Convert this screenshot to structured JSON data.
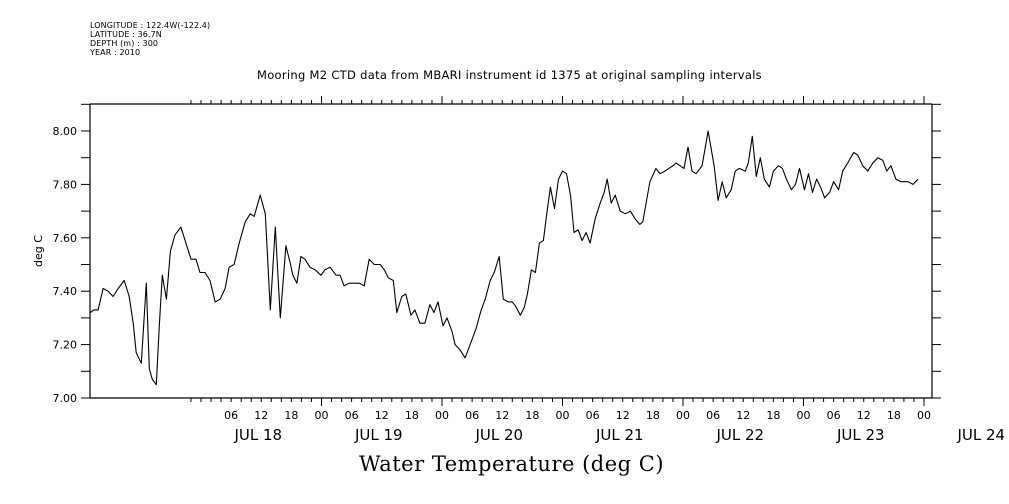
{
  "header": {
    "meta_lines": [
      "LONGITUDE : 122.4W(-122.4)",
      "LATITUDE : 36.7N",
      "DEPTH (m) : 300",
      "YEAR : 2010"
    ]
  },
  "chart_data": {
    "type": "line",
    "title": "Mooring M2 CTD data from MBARI instrument id 1375 at original sampling intervals",
    "xlabel": "Water Temperature (deg C)",
    "ylabel": "deg C",
    "ylim": [
      7.0,
      8.1
    ],
    "yticks": [
      7.0,
      7.2,
      7.4,
      7.6,
      7.8,
      8.0
    ],
    "ytick_labels": [
      "7.00",
      "7.20",
      "7.40",
      "7.60",
      "7.80",
      "8.00"
    ],
    "y_minor_step": 0.1,
    "x_units": "hours since JUL 18 00:00 (2010)",
    "xlim": [
      22.0,
      169.5
    ],
    "x_minor_step_hours": 2,
    "x_hour_ticks": [
      {
        "hour": 30,
        "label": "06"
      },
      {
        "hour": 36,
        "label": "12"
      },
      {
        "hour": 42,
        "label": "18"
      },
      {
        "hour": 48,
        "label": "00"
      },
      {
        "hour": 54,
        "label": "06"
      },
      {
        "hour": 60,
        "label": "12"
      },
      {
        "hour": 66,
        "label": "18"
      },
      {
        "hour": 72,
        "label": "00"
      },
      {
        "hour": 78,
        "label": "06"
      },
      {
        "hour": 84,
        "label": "12"
      },
      {
        "hour": 90,
        "label": "18"
      },
      {
        "hour": 96,
        "label": "00"
      },
      {
        "hour": 102,
        "label": "06"
      },
      {
        "hour": 108,
        "label": "12"
      },
      {
        "hour": 114,
        "label": "18"
      },
      {
        "hour": 120,
        "label": "00"
      },
      {
        "hour": 126,
        "label": "06"
      },
      {
        "hour": 132,
        "label": "12"
      },
      {
        "hour": 138,
        "label": "18"
      },
      {
        "hour": 144,
        "label": "00"
      },
      {
        "hour": 150,
        "label": "06"
      },
      {
        "hour": 156,
        "label": "12"
      },
      {
        "hour": 162,
        "label": "18"
      },
      {
        "hour": 168,
        "label": "00"
      }
    ],
    "x_day_labels": [
      {
        "hour": 36,
        "label": "JUL 18"
      },
      {
        "hour": 60,
        "label": "JUL 19"
      },
      {
        "hour": 84,
        "label": "JUL 20"
      },
      {
        "hour": 108,
        "label": "JUL 21"
      },
      {
        "hour": 132,
        "label": "JUL 22"
      },
      {
        "hour": 156,
        "label": "JUL 23"
      },
      {
        "hour": 180,
        "label": "JUL 24"
      }
    ],
    "x_day_boundaries": [
      48,
      72,
      96,
      120,
      144,
      168
    ],
    "grid": false,
    "legend": "none",
    "series": [
      {
        "name": "Water Temperature",
        "points": [
          [
            2.0,
            7.32
          ],
          [
            2.6,
            7.33
          ],
          [
            3.5,
            7.33
          ],
          [
            4.5,
            7.41
          ],
          [
            5.5,
            7.4
          ],
          [
            6.5,
            7.38
          ],
          [
            7.5,
            7.41
          ],
          [
            8.7,
            7.44
          ],
          [
            9.7,
            7.38
          ],
          [
            10.5,
            7.28
          ],
          [
            11.1,
            7.17
          ],
          [
            12.1,
            7.13
          ],
          [
            13.1,
            7.43
          ],
          [
            13.7,
            7.11
          ],
          [
            14.3,
            7.07
          ],
          [
            15.1,
            7.05
          ],
          [
            15.7,
            7.27
          ],
          [
            16.3,
            7.46
          ],
          [
            17.1,
            7.37
          ],
          [
            17.9,
            7.55
          ],
          [
            18.8,
            7.61
          ],
          [
            20.0,
            7.64
          ],
          [
            21.0,
            7.58
          ],
          [
            22.0,
            7.52
          ],
          [
            23.0,
            7.52
          ],
          [
            23.8,
            7.47
          ],
          [
            24.8,
            7.47
          ],
          [
            25.8,
            7.44
          ],
          [
            26.8,
            7.36
          ],
          [
            27.8,
            7.37
          ],
          [
            28.8,
            7.41
          ],
          [
            29.6,
            7.49
          ],
          [
            30.6,
            7.5
          ],
          [
            31.6,
            7.58
          ],
          [
            32.8,
            7.66
          ],
          [
            33.8,
            7.69
          ],
          [
            34.6,
            7.68
          ],
          [
            35.8,
            7.76
          ],
          [
            36.8,
            7.69
          ],
          [
            37.8,
            7.33
          ],
          [
            38.8,
            7.64
          ],
          [
            39.8,
            7.3
          ],
          [
            40.9,
            7.57
          ],
          [
            41.7,
            7.51
          ],
          [
            42.3,
            7.46
          ],
          [
            43.1,
            7.43
          ],
          [
            43.9,
            7.53
          ],
          [
            44.7,
            7.52
          ],
          [
            45.7,
            7.49
          ],
          [
            46.7,
            7.48
          ],
          [
            47.9,
            7.46
          ],
          [
            48.7,
            7.48
          ],
          [
            49.7,
            7.49
          ],
          [
            50.9,
            7.46
          ],
          [
            51.7,
            7.46
          ],
          [
            52.5,
            7.42
          ],
          [
            53.5,
            7.43
          ],
          [
            54.5,
            7.43
          ],
          [
            55.5,
            7.43
          ],
          [
            56.5,
            7.42
          ],
          [
            57.5,
            7.52
          ],
          [
            58.5,
            7.5
          ],
          [
            59.7,
            7.5
          ],
          [
            60.5,
            7.48
          ],
          [
            61.3,
            7.45
          ],
          [
            62.3,
            7.44
          ],
          [
            63.0,
            7.32
          ],
          [
            64.0,
            7.38
          ],
          [
            64.8,
            7.39
          ],
          [
            65.8,
            7.31
          ],
          [
            66.6,
            7.33
          ],
          [
            67.6,
            7.28
          ],
          [
            68.6,
            7.28
          ],
          [
            69.6,
            7.35
          ],
          [
            70.4,
            7.32
          ],
          [
            71.2,
            7.36
          ],
          [
            72.2,
            7.27
          ],
          [
            73.0,
            7.3
          ],
          [
            74.0,
            7.25
          ],
          [
            74.6,
            7.2
          ],
          [
            75.6,
            7.18
          ],
          [
            76.6,
            7.15
          ],
          [
            77.2,
            7.18
          ],
          [
            78.0,
            7.22
          ],
          [
            78.8,
            7.26
          ],
          [
            79.8,
            7.33
          ],
          [
            80.6,
            7.37
          ],
          [
            81.6,
            7.44
          ],
          [
            82.4,
            7.47
          ],
          [
            83.4,
            7.53
          ],
          [
            84.2,
            7.37
          ],
          [
            85.2,
            7.36
          ],
          [
            86.0,
            7.36
          ],
          [
            86.8,
            7.34
          ],
          [
            87.6,
            7.31
          ],
          [
            88.4,
            7.34
          ],
          [
            89.0,
            7.39
          ],
          [
            89.8,
            7.48
          ],
          [
            90.6,
            7.47
          ],
          [
            91.4,
            7.58
          ],
          [
            92.2,
            7.59
          ],
          [
            92.8,
            7.68
          ],
          [
            93.6,
            7.79
          ],
          [
            94.4,
            7.71
          ],
          [
            95.2,
            7.82
          ],
          [
            96.0,
            7.85
          ],
          [
            96.8,
            7.84
          ],
          [
            97.6,
            7.76
          ],
          [
            98.3,
            7.62
          ],
          [
            99.1,
            7.63
          ],
          [
            99.9,
            7.59
          ],
          [
            100.7,
            7.62
          ],
          [
            101.5,
            7.58
          ],
          [
            102.5,
            7.67
          ],
          [
            103.5,
            7.73
          ],
          [
            104.3,
            7.77
          ],
          [
            104.9,
            7.82
          ],
          [
            105.7,
            7.73
          ],
          [
            106.5,
            7.76
          ],
          [
            107.5,
            7.7
          ],
          [
            108.5,
            7.69
          ],
          [
            109.5,
            7.7
          ],
          [
            110.5,
            7.67
          ],
          [
            111.4,
            7.65
          ],
          [
            112.0,
            7.66
          ],
          [
            113.4,
            7.81
          ],
          [
            114.6,
            7.86
          ],
          [
            115.4,
            7.84
          ],
          [
            116.4,
            7.85
          ],
          [
            117.2,
            7.86
          ],
          [
            118.0,
            7.87
          ],
          [
            118.6,
            7.88
          ],
          [
            119.4,
            7.87
          ],
          [
            120.2,
            7.86
          ],
          [
            121.0,
            7.94
          ],
          [
            121.8,
            7.85
          ],
          [
            122.6,
            7.84
          ],
          [
            123.8,
            7.87
          ],
          [
            125.0,
            8.0
          ],
          [
            126.2,
            7.87
          ],
          [
            127.0,
            7.74
          ],
          [
            127.8,
            7.81
          ],
          [
            128.6,
            7.75
          ],
          [
            129.6,
            7.78
          ],
          [
            130.4,
            7.85
          ],
          [
            131.2,
            7.86
          ],
          [
            132.4,
            7.85
          ],
          [
            133.0,
            7.88
          ],
          [
            133.8,
            7.98
          ],
          [
            134.6,
            7.83
          ],
          [
            135.4,
            7.9
          ],
          [
            136.2,
            7.82
          ],
          [
            137.2,
            7.79
          ],
          [
            138.0,
            7.85
          ],
          [
            139.0,
            7.87
          ],
          [
            139.8,
            7.86
          ],
          [
            140.6,
            7.82
          ],
          [
            141.6,
            7.78
          ],
          [
            142.4,
            7.8
          ],
          [
            143.2,
            7.86
          ],
          [
            144.2,
            7.78
          ],
          [
            145.0,
            7.84
          ],
          [
            145.8,
            7.77
          ],
          [
            146.6,
            7.82
          ],
          [
            147.4,
            7.79
          ],
          [
            148.2,
            7.75
          ],
          [
            149.2,
            7.77
          ],
          [
            150.0,
            7.81
          ],
          [
            151.0,
            7.78
          ],
          [
            151.8,
            7.85
          ],
          [
            152.8,
            7.88
          ],
          [
            154.0,
            7.92
          ],
          [
            154.8,
            7.91
          ],
          [
            155.8,
            7.87
          ],
          [
            156.8,
            7.85
          ],
          [
            157.8,
            7.88
          ],
          [
            158.8,
            7.9
          ],
          [
            159.8,
            7.89
          ],
          [
            160.6,
            7.85
          ],
          [
            161.4,
            7.87
          ],
          [
            162.4,
            7.82
          ],
          [
            163.4,
            7.81
          ],
          [
            164.8,
            7.81
          ],
          [
            165.8,
            7.8
          ],
          [
            166.8,
            7.82
          ]
        ]
      }
    ]
  }
}
